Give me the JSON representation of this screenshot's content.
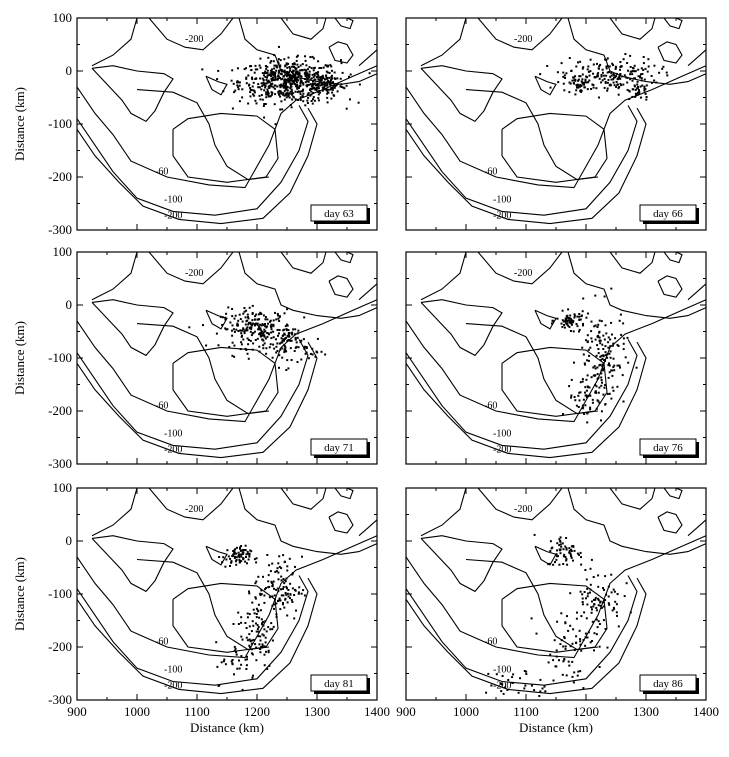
{
  "chart_data": {
    "type": "scatter",
    "xlabel": "Distance (km)",
    "ylabel": "Distance (km)",
    "xlim": [
      900,
      1400
    ],
    "ylim": [
      -300,
      100
    ],
    "x_ticks": [
      900,
      1000,
      1100,
      1200,
      1300,
      1400
    ],
    "y_ticks": [
      -300,
      -200,
      -100,
      0,
      100
    ],
    "grid": false,
    "contour_levels": [
      "-200",
      "-60",
      "-100",
      "-200"
    ],
    "background": "depth contours (km)",
    "panels": [
      {
        "label": "day 63",
        "clusters": [
          [
            1255,
            -20,
            42,
            20,
            600
          ],
          [
            1320,
            -25,
            12,
            12,
            60
          ]
        ]
      },
      {
        "label": "day 66",
        "clusters": [
          [
            1240,
            -10,
            40,
            18,
            200
          ],
          [
            1190,
            -25,
            12,
            8,
            40
          ],
          [
            1290,
            -40,
            8,
            10,
            20
          ]
        ]
      },
      {
        "label": "day 71",
        "clusters": [
          [
            1200,
            -45,
            30,
            18,
            220
          ],
          [
            1250,
            -75,
            12,
            20,
            70
          ],
          [
            1290,
            -90,
            10,
            10,
            15
          ]
        ]
      },
      {
        "label": "day 76",
        "clusters": [
          [
            1175,
            -30,
            12,
            8,
            60
          ],
          [
            1225,
            -100,
            20,
            45,
            160
          ],
          [
            1200,
            -175,
            15,
            20,
            40
          ]
        ]
      },
      {
        "label": "day 81",
        "clusters": [
          [
            1165,
            -30,
            12,
            10,
            70
          ],
          [
            1235,
            -90,
            20,
            30,
            120
          ],
          [
            1200,
            -175,
            15,
            35,
            80
          ],
          [
            1170,
            -230,
            20,
            20,
            30
          ]
        ]
      },
      {
        "label": "day 86",
        "clusters": [
          [
            1165,
            -20,
            15,
            15,
            60
          ],
          [
            1220,
            -110,
            20,
            30,
            80
          ],
          [
            1170,
            -200,
            25,
            35,
            70
          ],
          [
            1090,
            -270,
            30,
            15,
            30
          ]
        ]
      }
    ],
    "colors": {
      "points": "#000000",
      "contours": "#000000",
      "background": "#ffffff"
    }
  }
}
